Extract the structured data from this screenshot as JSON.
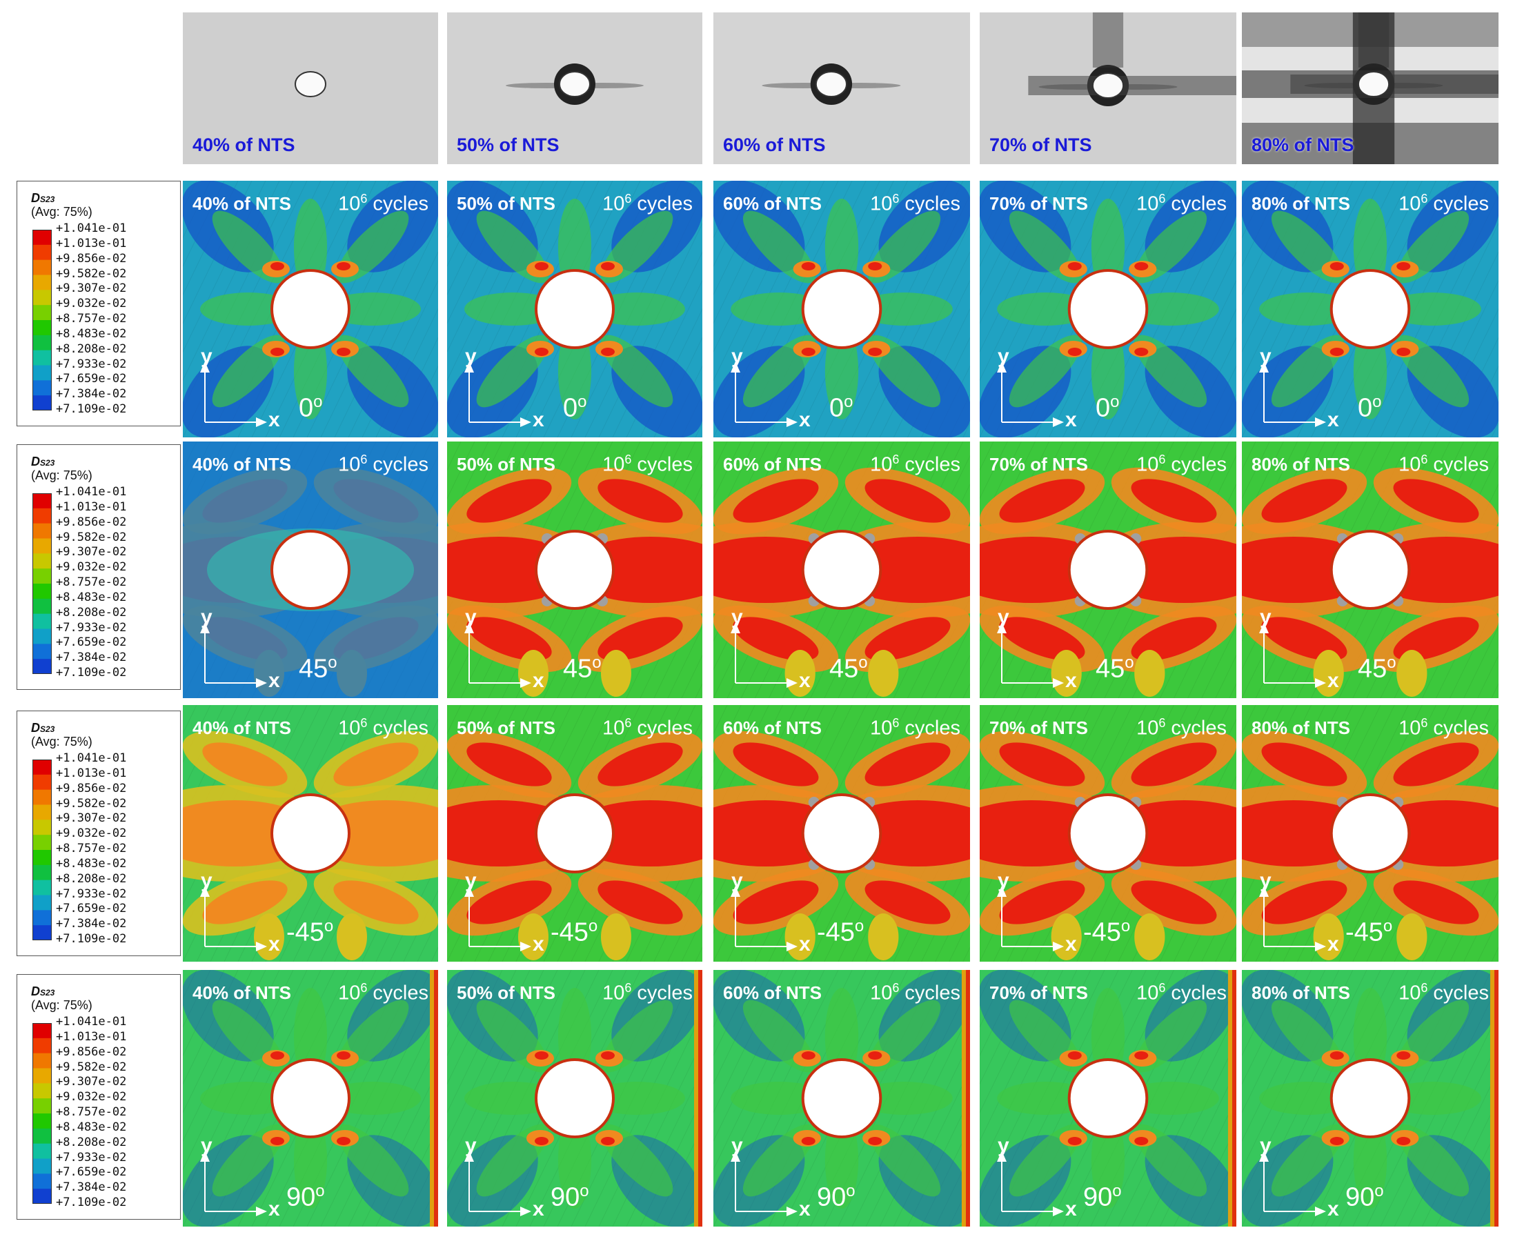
{
  "photos": [
    {
      "label": "40% of NTS",
      "damage": 0
    },
    {
      "label": "50% of NTS",
      "damage": 1
    },
    {
      "label": "60% of NTS",
      "damage": 1
    },
    {
      "label": "70% of NTS",
      "damage": 2
    },
    {
      "label": "80% of NTS",
      "damage": 3
    }
  ],
  "legend": {
    "variable": "D",
    "variable_sub": "S23",
    "averaging": "(Avg: 75%)",
    "values": [
      "+1.041e-01",
      "+1.013e-01",
      "+9.856e-02",
      "+9.582e-02",
      "+9.307e-02",
      "+9.032e-02",
      "+8.757e-02",
      "+8.483e-02",
      "+8.208e-02",
      "+7.933e-02",
      "+7.659e-02",
      "+7.384e-02",
      "+7.109e-02"
    ],
    "colors": [
      "#e00000",
      "#f03c00",
      "#f07800",
      "#e8a800",
      "#c8c800",
      "#78d000",
      "#20c800",
      "#10c040",
      "#10c0a0",
      "#10a0c8",
      "#1070d8",
      "#1040d0",
      "#0010c8"
    ]
  },
  "cycles_base": "10",
  "cycles_exp": "6",
  "cycles_word": "cycles",
  "axis_y": "y",
  "axis_x": "x",
  "rows": [
    {
      "angle": "0",
      "panels": [
        {
          "load": "40% of NTS",
          "intensity": 0.15
        },
        {
          "load": "50% of NTS",
          "intensity": 0.2
        },
        {
          "load": "60% of NTS",
          "intensity": 0.2
        },
        {
          "load": "70% of NTS",
          "intensity": 0.2
        },
        {
          "load": "80% of NTS",
          "intensity": 0.2
        }
      ]
    },
    {
      "angle": "45",
      "panels": [
        {
          "load": "40% of NTS",
          "intensity": 0.1
        },
        {
          "load": "50% of NTS",
          "intensity": 0.95
        },
        {
          "load": "60% of NTS",
          "intensity": 1.0
        },
        {
          "load": "70% of NTS",
          "intensity": 1.0
        },
        {
          "load": "80% of NTS",
          "intensity": 1.0
        }
      ]
    },
    {
      "angle": "-45",
      "panels": [
        {
          "load": "40% of NTS",
          "intensity": 0.55
        },
        {
          "load": "50% of NTS",
          "intensity": 0.9
        },
        {
          "load": "60% of NTS",
          "intensity": 0.95
        },
        {
          "load": "70% of NTS",
          "intensity": 0.95
        },
        {
          "load": "80% of NTS",
          "intensity": 0.95
        }
      ]
    },
    {
      "angle": "90",
      "panels": [
        {
          "load": "40% of NTS",
          "intensity": 0.3
        },
        {
          "load": "50% of NTS",
          "intensity": 0.3
        },
        {
          "load": "60% of NTS",
          "intensity": 0.3
        },
        {
          "load": "70% of NTS",
          "intensity": 0.3
        },
        {
          "load": "80% of NTS",
          "intensity": 0.3
        }
      ]
    }
  ]
}
